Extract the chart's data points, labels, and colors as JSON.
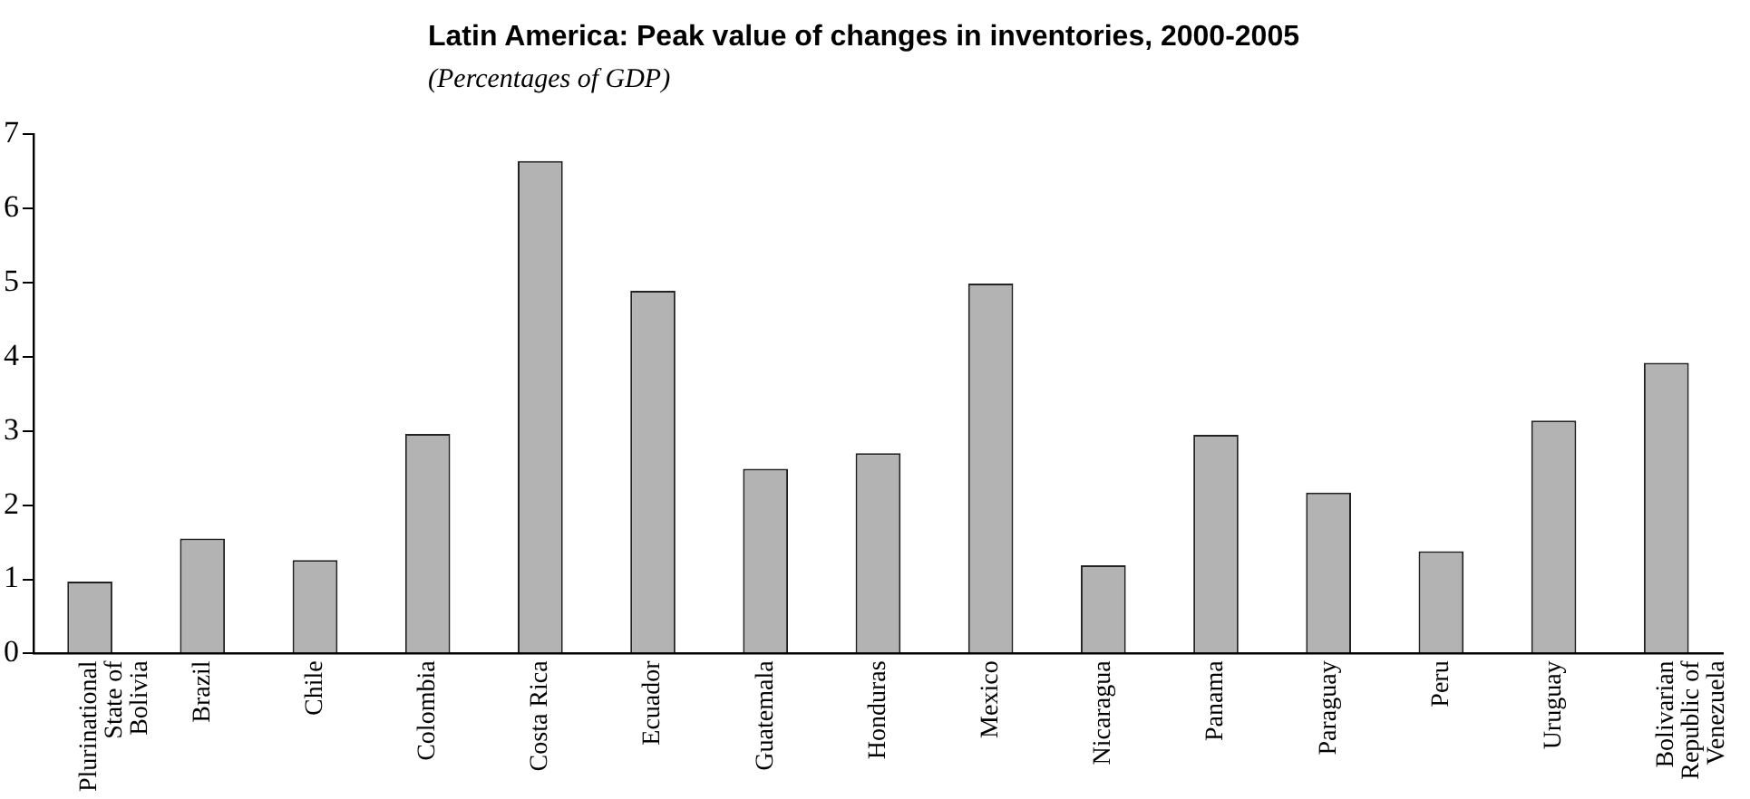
{
  "chart_data": {
    "type": "bar",
    "title": "Latin America: Peak value of changes in inventories, 2000-2005",
    "subtitle": "(Percentages of GDP)",
    "categories": [
      "Plurinational State of Bolivia",
      "Brazil",
      "Chile",
      "Colombia",
      "Costa Rica",
      "Ecuador",
      "Guatemala",
      "Honduras",
      "Mexico",
      "Nicaragua",
      "Panama",
      "Paraguay",
      "Peru",
      "Uruguay",
      "Bolivarian Republic of Venezuela"
    ],
    "values": [
      0.97,
      1.55,
      1.26,
      2.96,
      6.64,
      4.89,
      2.49,
      2.7,
      4.99,
      1.19,
      2.95,
      2.17,
      1.38,
      3.14,
      3.92
    ],
    "color": "#b3b3b3",
    "ylim": [
      0,
      7
    ],
    "yticks": [
      0,
      1,
      2,
      3,
      4,
      5,
      6,
      7
    ],
    "grid": false,
    "legend": false
  }
}
